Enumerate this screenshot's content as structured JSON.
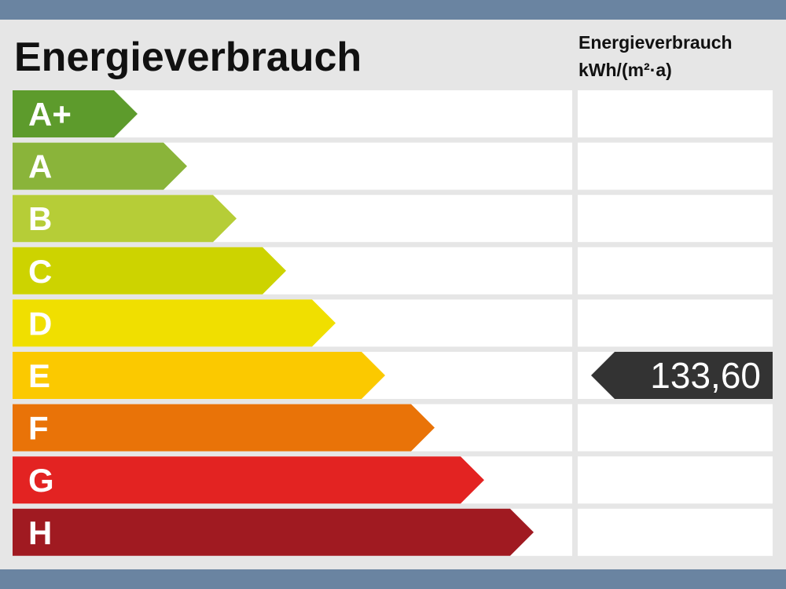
{
  "title": "Energieverbrauch",
  "unit_header": [
    "Energieverbrauch",
    "kWh/(m²·a)"
  ],
  "rows": [
    {
      "label": "A+",
      "color": "#5d9b2c"
    },
    {
      "label": "A",
      "color": "#8ab43a"
    },
    {
      "label": "B",
      "color": "#b6cd37"
    },
    {
      "label": "C",
      "color": "#cdd300"
    },
    {
      "label": "D",
      "color": "#f0df00"
    },
    {
      "label": "E",
      "color": "#fbc900",
      "value": "133,60"
    },
    {
      "label": "F",
      "color": "#e97308"
    },
    {
      "label": "G",
      "color": "#e32322"
    },
    {
      "label": "H",
      "color": "#a01a21"
    }
  ]
}
